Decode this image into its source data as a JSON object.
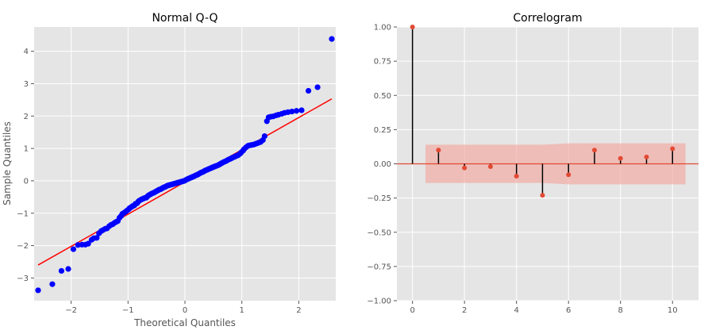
{
  "chart_data": [
    {
      "type": "scatter",
      "title": "Normal Q-Q",
      "xlabel": "Theoretical Quantiles",
      "ylabel": "Sample Quantiles",
      "xlim": [
        -2.65,
        2.65
      ],
      "ylim": [
        -3.7,
        4.75
      ],
      "xticks": [
        -2,
        -1,
        0,
        1,
        2
      ],
      "yticks": [
        -3,
        -2,
        -1,
        0,
        1,
        2,
        3,
        4
      ],
      "grid": true,
      "marker_color": "#0000ff",
      "line_color": "#ff0000",
      "reference_line": {
        "x": [
          -2.58,
          2.58
        ],
        "y": [
          -2.6,
          2.53
        ]
      },
      "points": {
        "x": [
          -2.58,
          -2.33,
          -2.17,
          -2.05,
          -1.96,
          -1.88,
          -1.81,
          -1.75,
          -1.7,
          -1.64,
          -1.6,
          -1.55,
          -1.51,
          -1.47,
          -1.44,
          -1.4,
          -1.37,
          -1.33,
          -1.3,
          -1.27,
          -1.24,
          -1.21,
          -1.18,
          -1.15,
          -1.12,
          -1.1,
          -1.07,
          -1.04,
          -1.02,
          -0.99,
          -0.97,
          -0.94,
          -0.92,
          -0.89,
          -0.87,
          -0.84,
          -0.82,
          -0.8,
          -0.77,
          -0.75,
          -0.73,
          -0.71,
          -0.68,
          -0.66,
          -0.64,
          -0.62,
          -0.6,
          -0.58,
          -0.55,
          -0.53,
          -0.51,
          -0.49,
          -0.47,
          -0.45,
          -0.43,
          -0.41,
          -0.39,
          -0.37,
          -0.35,
          -0.33,
          -0.31,
          -0.29,
          -0.27,
          -0.25,
          -0.23,
          -0.21,
          -0.19,
          -0.17,
          -0.15,
          -0.13,
          -0.11,
          -0.09,
          -0.07,
          -0.05,
          -0.03,
          -0.01,
          0.01,
          0.03,
          0.05,
          0.07,
          0.09,
          0.11,
          0.13,
          0.15,
          0.17,
          0.19,
          0.21,
          0.23,
          0.25,
          0.27,
          0.29,
          0.31,
          0.33,
          0.35,
          0.37,
          0.39,
          0.41,
          0.43,
          0.45,
          0.47,
          0.49,
          0.51,
          0.53,
          0.55,
          0.58,
          0.6,
          0.62,
          0.64,
          0.66,
          0.68,
          0.71,
          0.73,
          0.75,
          0.77,
          0.8,
          0.82,
          0.84,
          0.87,
          0.89,
          0.92,
          0.94,
          0.97,
          0.99,
          1.02,
          1.04,
          1.07,
          1.1,
          1.12,
          1.15,
          1.18,
          1.21,
          1.24,
          1.27,
          1.3,
          1.33,
          1.37,
          1.4,
          1.44,
          1.47,
          1.51,
          1.55,
          1.6,
          1.64,
          1.7,
          1.75,
          1.81,
          1.88,
          1.96,
          2.05,
          2.17,
          2.33,
          2.58
        ],
        "y": [
          -3.38,
          -3.19,
          -2.78,
          -2.72,
          -2.11,
          -1.98,
          -1.97,
          -1.97,
          -1.94,
          -1.82,
          -1.77,
          -1.76,
          -1.62,
          -1.55,
          -1.52,
          -1.48,
          -1.47,
          -1.4,
          -1.36,
          -1.34,
          -1.3,
          -1.27,
          -1.24,
          -1.14,
          -1.08,
          -1.02,
          -0.99,
          -0.95,
          -0.92,
          -0.88,
          -0.84,
          -0.81,
          -0.78,
          -0.76,
          -0.71,
          -0.69,
          -0.64,
          -0.61,
          -0.58,
          -0.56,
          -0.55,
          -0.53,
          -0.52,
          -0.48,
          -0.45,
          -0.43,
          -0.41,
          -0.39,
          -0.37,
          -0.35,
          -0.33,
          -0.31,
          -0.29,
          -0.27,
          -0.26,
          -0.24,
          -0.22,
          -0.2,
          -0.19,
          -0.17,
          -0.15,
          -0.14,
          -0.13,
          -0.12,
          -0.11,
          -0.1,
          -0.09,
          -0.08,
          -0.07,
          -0.06,
          -0.05,
          -0.04,
          -0.03,
          -0.02,
          -0.01,
          0.0,
          0.02,
          0.04,
          0.06,
          0.07,
          0.09,
          0.1,
          0.12,
          0.13,
          0.15,
          0.17,
          0.18,
          0.2,
          0.22,
          0.24,
          0.26,
          0.27,
          0.29,
          0.31,
          0.33,
          0.34,
          0.36,
          0.37,
          0.39,
          0.4,
          0.42,
          0.43,
          0.45,
          0.46,
          0.48,
          0.5,
          0.52,
          0.54,
          0.56,
          0.58,
          0.6,
          0.62,
          0.64,
          0.66,
          0.68,
          0.7,
          0.72,
          0.74,
          0.76,
          0.78,
          0.8,
          0.84,
          0.88,
          0.93,
          0.98,
          1.03,
          1.07,
          1.09,
          1.1,
          1.11,
          1.12,
          1.14,
          1.16,
          1.18,
          1.2,
          1.26,
          1.38,
          1.84,
          1.96,
          1.98,
          1.99,
          2.02,
          2.04,
          2.07,
          2.1,
          2.12,
          2.14,
          2.16,
          2.18,
          2.78,
          2.89,
          4.38
        ]
      }
    },
    {
      "type": "bar",
      "title": "Correlogram",
      "xlim": [
        -0.6,
        11.0
      ],
      "ylim": [
        -1.0,
        1.0
      ],
      "xticks": [
        0,
        2,
        4,
        6,
        8,
        10
      ],
      "yticks": [
        -1.0,
        -0.75,
        -0.5,
        -0.25,
        0.0,
        0.25,
        0.5,
        0.75,
        1.0
      ],
      "ytick_labels": [
        "−1.00",
        "−0.75",
        "−0.50",
        "−0.25",
        "0.00",
        "0.25",
        "0.50",
        "0.75",
        "1.00"
      ],
      "grid": true,
      "marker_color": "#e24a33",
      "stem_color": "#000000",
      "confidence_color": "#f2a8a0",
      "lags": [
        0,
        1,
        2,
        3,
        4,
        5,
        6,
        7,
        8,
        9,
        10
      ],
      "values": [
        1.0,
        0.1,
        -0.03,
        -0.02,
        -0.09,
        -0.23,
        -0.08,
        0.1,
        0.04,
        0.05,
        0.11
      ],
      "confidence_band": {
        "x": [
          0.5,
          1,
          2,
          3,
          4,
          5,
          6,
          7,
          8,
          9,
          10,
          10.5
        ],
        "upper": [
          0.14,
          0.14,
          0.14,
          0.14,
          0.14,
          0.14,
          0.15,
          0.15,
          0.15,
          0.15,
          0.15,
          0.15
        ],
        "lower": [
          -0.14,
          -0.14,
          -0.14,
          -0.14,
          -0.14,
          -0.14,
          -0.15,
          -0.15,
          -0.15,
          -0.15,
          -0.15,
          -0.15
        ]
      }
    }
  ]
}
